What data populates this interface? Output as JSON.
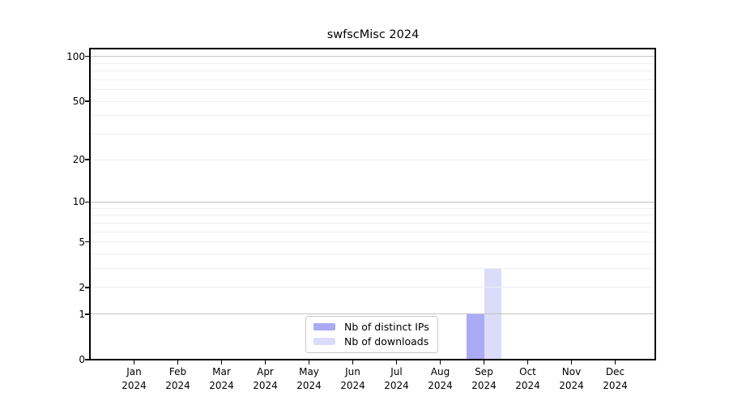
{
  "chart_data": {
    "type": "bar",
    "title": "swfscMisc 2024",
    "categories": [
      "Jan",
      "Feb",
      "Mar",
      "Apr",
      "May",
      "Jun",
      "Jul",
      "Aug",
      "Sep",
      "Oct",
      "Nov",
      "Dec"
    ],
    "x_year": "2024",
    "series": [
      {
        "name": "Nb of distinct IPs",
        "color": "#aaaaf5",
        "values": [
          0,
          0,
          0,
          0,
          0,
          0,
          0,
          0,
          1,
          0,
          0,
          0
        ]
      },
      {
        "name": "Nb of downloads",
        "color": "#dcdcfa",
        "values": [
          0,
          0,
          0,
          0,
          0,
          0,
          0,
          0,
          3,
          0,
          0,
          0
        ]
      }
    ],
    "yscale": "log1p",
    "ylim": [
      0,
      112
    ],
    "yticks": [
      0,
      1,
      2,
      5,
      10,
      20,
      50,
      100
    ],
    "grid": {
      "major": [
        1,
        10,
        100
      ],
      "minor": [
        2,
        3,
        4,
        5,
        6,
        7,
        8,
        9,
        20,
        30,
        40,
        50,
        60,
        70,
        80,
        90
      ],
      "major_color": "#c3c3c3",
      "minor_color": "#efefef"
    },
    "legend_position": "bottom-center",
    "background_color": "#ffffff",
    "axis_color": "#000000"
  }
}
